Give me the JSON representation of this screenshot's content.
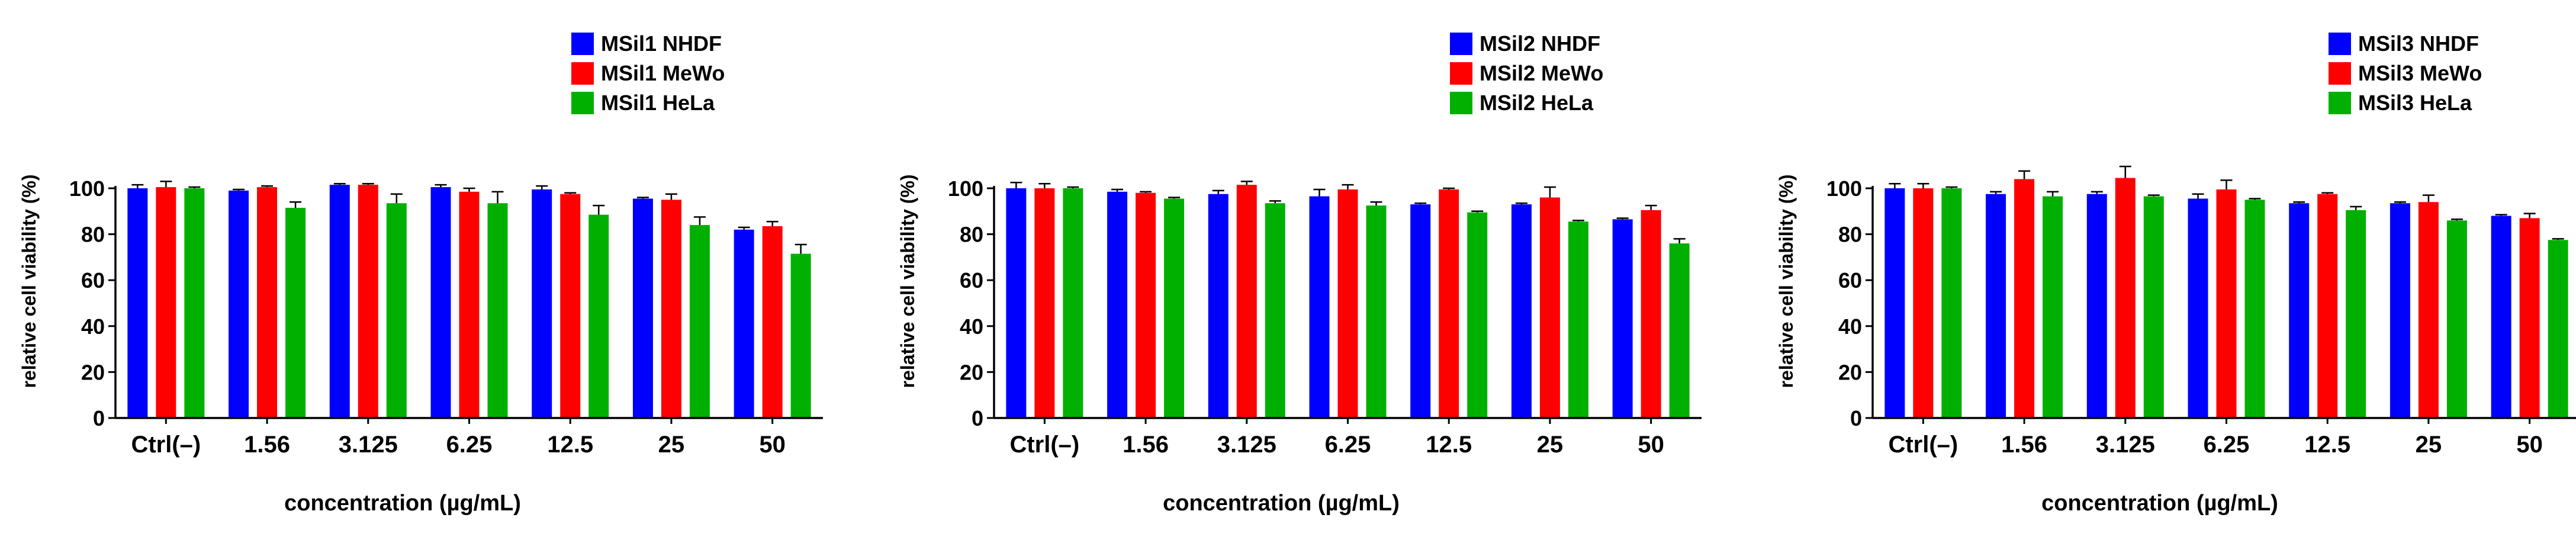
{
  "colors": {
    "nhdf": "#0000ff",
    "mewo": "#ff0000",
    "hela": "#00b000",
    "axis": "#000000"
  },
  "chart_data": [
    {
      "type": "bar",
      "categories": [
        "Ctrl(–)",
        "1.56",
        "3.125",
        "6.25",
        "12.5",
        "25",
        "50"
      ],
      "xlabel": "concentration (µg/mL)",
      "ylabel": "relative cell viability (%)",
      "ylim": [
        0,
        100
      ],
      "yticks": [
        0,
        20,
        40,
        60,
        80,
        100
      ],
      "legend_position": "top-right",
      "series": [
        {
          "name": "MSil1 NHDF",
          "color": "#0000ff",
          "values": [
            100,
            99,
            101.5,
            100.5,
            99.5,
            95.5,
            82
          ],
          "errors": [
            1.5,
            0.5,
            0.5,
            1,
            1.5,
            0.5,
            1
          ]
        },
        {
          "name": "MSil1 MeWo",
          "color": "#ff0000",
          "values": [
            100.5,
            100.5,
            101.5,
            98.5,
            97.5,
            95,
            83.5
          ],
          "errors": [
            2.5,
            0.5,
            0.5,
            1.5,
            0.5,
            2.5,
            2
          ]
        },
        {
          "name": "MSil1 HeLa",
          "color": "#00b000",
          "values": [
            100,
            91.5,
            93.5,
            93.5,
            88.5,
            84,
            71.5
          ],
          "errors": [
            0.5,
            2.5,
            4,
            5,
            4,
            3.5,
            4
          ]
        }
      ]
    },
    {
      "type": "bar",
      "categories": [
        "Ctrl(–)",
        "1.56",
        "3.125",
        "6.25",
        "12.5",
        "25",
        "50"
      ],
      "xlabel": "concentration (µg/mL)",
      "ylabel": "relative cell viability (%)",
      "ylim": [
        0,
        100
      ],
      "yticks": [
        0,
        20,
        40,
        60,
        80,
        100
      ],
      "legend_position": "top-right",
      "series": [
        {
          "name": "MSil2 NHDF",
          "color": "#0000ff",
          "values": [
            100,
            98.5,
            97.5,
            96.5,
            93,
            93,
            86.5
          ],
          "errors": [
            2.5,
            1,
            1.5,
            3,
            0.5,
            0.5,
            0.5
          ]
        },
        {
          "name": "MSil2 MeWo",
          "color": "#ff0000",
          "values": [
            100,
            98,
            101.5,
            99.5,
            99.5,
            96,
            90.5
          ],
          "errors": [
            2,
            0.5,
            1.5,
            2,
            0.5,
            4.5,
            2
          ]
        },
        {
          "name": "MSil2 HeLa",
          "color": "#00b000",
          "values": [
            100,
            95.5,
            93.5,
            92.5,
            89.5,
            85.5,
            76
          ],
          "errors": [
            0.5,
            0.5,
            1,
            1.5,
            0.5,
            0.5,
            2
          ]
        }
      ]
    },
    {
      "type": "bar",
      "categories": [
        "Ctrl(–)",
        "1.56",
        "3.125",
        "6.25",
        "12.5",
        "25",
        "50"
      ],
      "xlabel": "concentration (µg/mL)",
      "ylabel": "relative cell viability (%)",
      "ylim": [
        0,
        100
      ],
      "yticks": [
        0,
        20,
        40,
        60,
        80,
        100
      ],
      "legend_position": "top-right",
      "series": [
        {
          "name": "MSil3 NHDF",
          "color": "#0000ff",
          "values": [
            100,
            97.5,
            97.5,
            95.5,
            93.5,
            93.5,
            88
          ],
          "errors": [
            2,
            1,
            1,
            2,
            0.5,
            0.5,
            0.5
          ]
        },
        {
          "name": "MSil3 MeWo",
          "color": "#ff0000",
          "values": [
            100,
            104,
            104.5,
            99.5,
            97.5,
            94,
            87
          ],
          "errors": [
            2,
            3.5,
            5,
            4,
            0.5,
            3,
            2
          ]
        },
        {
          "name": "MSil3 HeLa",
          "color": "#00b000",
          "values": [
            100,
            96.5,
            96.5,
            95,
            90.5,
            86,
            77.5
          ],
          "errors": [
            0.5,
            2,
            0.5,
            0.5,
            1.5,
            0.5,
            0.5
          ]
        }
      ]
    }
  ]
}
